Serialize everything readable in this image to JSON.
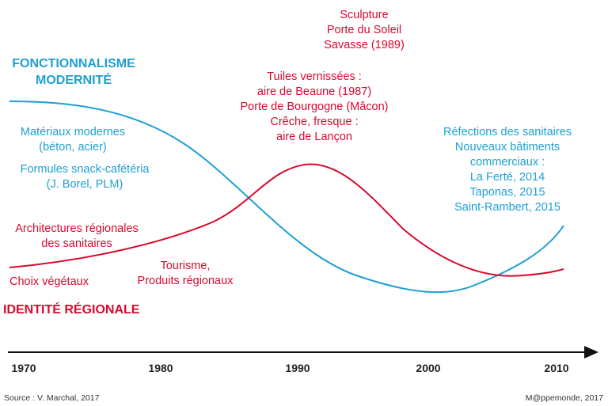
{
  "colors": {
    "blue": "#1ea0d2",
    "red": "#d9092f",
    "axis": "#111111"
  },
  "blue_theme": {
    "title": [
      "FONCTIONNALISME",
      "MODERNITÉ"
    ],
    "labels": [
      [
        "Matériaux modernes",
        "(béton, acier)"
      ],
      [
        "Formules snack-cafétéria",
        "(J. Borel, PLM)"
      ],
      [
        "Réfections des sanitaires",
        "Nouveaux bâtiments",
        "commerciaux :",
        "La Ferté, 2014",
        "Taponas, 2015",
        "Saint-Rambert, 2015"
      ]
    ]
  },
  "red_theme": {
    "title": "IDENTITÉ RÉGIONALE",
    "labels": [
      [
        "Sculpture",
        "Porte du Soleil",
        "Savasse (1989)"
      ],
      [
        "Tuiles vernissées :",
        "aire de Beaune (1987)",
        "Porte de Bourgogne (Mâcon)",
        "Crêche, fresque :",
        "aire de Lançon"
      ],
      [
        "Architectures régionales",
        "des sanitaires"
      ],
      [
        "Tourisme,",
        "Produits régionaux"
      ],
      [
        "Choix végétaux"
      ]
    ]
  },
  "axis": {
    "ticks": [
      "1970",
      "1980",
      "1990",
      "2000",
      "2010"
    ]
  },
  "footer": {
    "source": "Source : V. Marchal, 2017",
    "credit": "M@ppemonde, 2017"
  }
}
